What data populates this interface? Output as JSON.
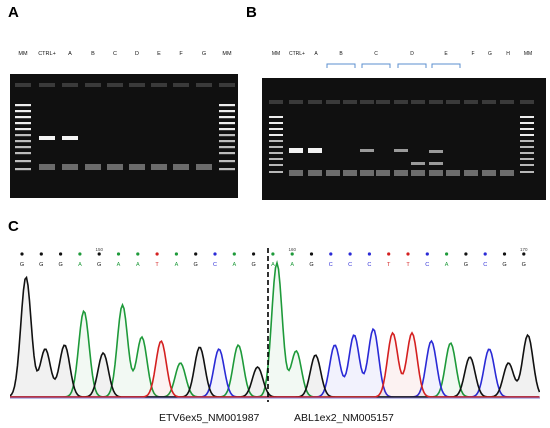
{
  "panels": {
    "a": {
      "letter": "A",
      "lanes": [
        "MM",
        "CTRL+",
        "A",
        "B",
        "C",
        "D",
        "E",
        "F",
        "G",
        "MM"
      ]
    },
    "b": {
      "letter": "B",
      "lanes": [
        "MM",
        "CTRL+",
        "A",
        "F",
        "G",
        "H",
        "MM"
      ],
      "group_labels": [
        "B",
        "C",
        "D",
        "E"
      ]
    },
    "c": {
      "letter": "C",
      "base_calls": [
        "G",
        "G",
        "G",
        "A",
        "G",
        "A",
        "A",
        "T",
        "A",
        "G",
        "C",
        "A",
        "G",
        "A",
        "A",
        "G",
        "C",
        "C",
        "C",
        "T",
        "T",
        "C",
        "A",
        "G",
        "C",
        "G",
        "G"
      ],
      "peak_numbers": [
        "150",
        "160",
        "170"
      ],
      "left_label": "ETV6ex5_NM001987",
      "right_label": "ABL1ex2_NM005157"
    }
  },
  "colors": {
    "A": "#1e9a3a",
    "C": "#2a2ad6",
    "G": "#111111",
    "T": "#d42020"
  }
}
